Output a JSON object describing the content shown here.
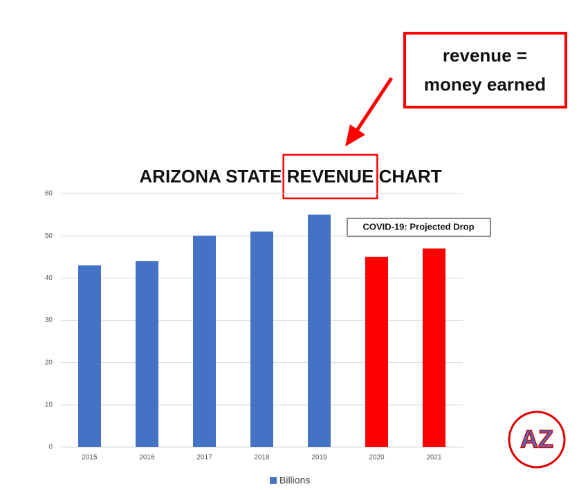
{
  "chart_data": {
    "type": "bar",
    "title": "ARIZONA STATE REVENUE CHART",
    "callout": [
      "revenue =",
      "money earned"
    ],
    "annotation": "COVID-19: Projected Drop",
    "logo": "AZ",
    "categories": [
      "2015",
      "2016",
      "2017",
      "2018",
      "2019",
      "2020",
      "2021"
    ],
    "series": [
      {
        "name": "Billions",
        "color": "#4472c4",
        "values": [
          43,
          44,
          50,
          51,
          55,
          45,
          47
        ],
        "colors": [
          "#4472c4",
          "#4472c4",
          "#4472c4",
          "#4472c4",
          "#4472c4",
          "#ff0000",
          "#ff0000"
        ]
      }
    ],
    "ylim": [
      0,
      60
    ],
    "yticks": [
      0,
      10,
      20,
      30,
      40,
      50,
      60
    ],
    "grid": true,
    "legend": "bottom"
  }
}
